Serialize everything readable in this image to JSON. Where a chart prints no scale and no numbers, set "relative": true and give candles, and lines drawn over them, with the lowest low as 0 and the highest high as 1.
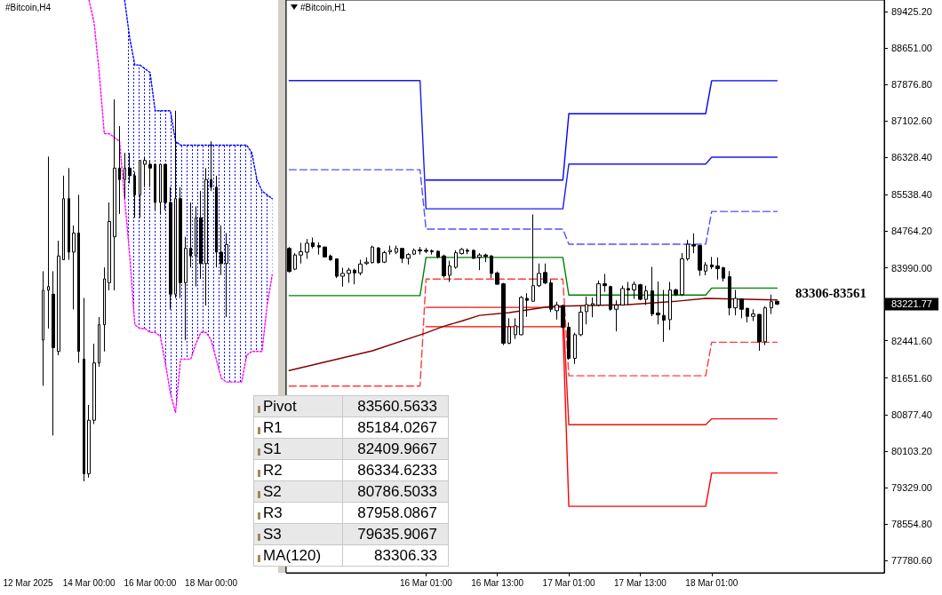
{
  "chart_data": [
    {
      "type": "candlestick",
      "title": "#Bitcoin,H4",
      "relative": true,
      "x": [
        "2025-03-12T12:00",
        "2025-03-12T16:00",
        "2025-03-12T20:00",
        "2025-03-13T00:00",
        "2025-03-13T04:00",
        "2025-03-13T08:00",
        "2025-03-13T12:00",
        "2025-03-13T16:00",
        "2025-03-13T20:00",
        "2025-03-14T00:00",
        "2025-03-14T04:00",
        "2025-03-14T08:00",
        "2025-03-14T12:00",
        "2025-03-14T16:00",
        "2025-03-14T20:00",
        "2025-03-15T00:00",
        "2025-03-15T04:00",
        "2025-03-15T08:00",
        "2025-03-15T12:00",
        "2025-03-15T16:00",
        "2025-03-15T20:00",
        "2025-03-16T00:00",
        "2025-03-16T04:00",
        "2025-03-16T08:00",
        "2025-03-16T12:00",
        "2025-03-16T16:00",
        "2025-03-16T20:00",
        "2025-03-17T00:00",
        "2025-03-17T04:00",
        "2025-03-17T08:00",
        "2025-03-17T12:00",
        "2025-03-17T16:00",
        "2025-03-17T20:00",
        "2025-03-18T00:00",
        "2025-03-18T04:00",
        "2025-03-18T08:00",
        "2025-03-18T12:00"
      ],
      "ohlc": [
        [
          0.37,
          0.55,
          0.25,
          0.5
        ],
        [
          0.5,
          0.85,
          0.4,
          0.51
        ],
        [
          0.49,
          0.55,
          0.12,
          0.35
        ],
        [
          0.34,
          0.63,
          0.33,
          0.59
        ],
        [
          0.58,
          0.8,
          0.58,
          0.74
        ],
        [
          0.74,
          0.82,
          0.58,
          0.6
        ],
        [
          0.6,
          0.67,
          0.45,
          0.65
        ],
        [
          0.65,
          0.75,
          0.31,
          0.34
        ],
        [
          0.32,
          0.48,
          0,
          0.02
        ],
        [
          0.02,
          0.2,
          0.01,
          0.16
        ],
        [
          0.16,
          0.36,
          0.15,
          0.31
        ],
        [
          0.31,
          0.43,
          0.3,
          0.41
        ],
        [
          0.41,
          0.56,
          0.34,
          0.53
        ],
        [
          0.52,
          0.73,
          0.5,
          0.68
        ],
        [
          0.64,
          1,
          0.5,
          0.82
        ],
        [
          0.82,
          0.93,
          0.7,
          0.79
        ],
        [
          0.79,
          0.86,
          0.74,
          0.82
        ],
        [
          0.82,
          0.86,
          0.78,
          0.8
        ],
        [
          0.8,
          0.81,
          0.69,
          0.75
        ],
        [
          0.75,
          0.84,
          0.69,
          0.84
        ],
        [
          0.83,
          0.85,
          0.77,
          0.84
        ],
        [
          0.83,
          0.84,
          0.77,
          0.82
        ],
        [
          0.83,
          0.83,
          0.71,
          0.73
        ],
        [
          0.73,
          0.83,
          0.7,
          0.83
        ],
        [
          0.83,
          0.83,
          0.71,
          0.73
        ],
        [
          0.73,
          0.77,
          0.45,
          0.49
        ],
        [
          0.49,
          0.97,
          0.48,
          0.74
        ],
        [
          0.74,
          0.77,
          0.48,
          0.52
        ],
        [
          0.52,
          0.64,
          0.37,
          0.61
        ],
        [
          0.61,
          0.73,
          0.56,
          0.59
        ],
        [
          0.59,
          0.72,
          0.51,
          0.69
        ],
        [
          0.69,
          0.76,
          0.53,
          0.57
        ],
        [
          0.57,
          0.82,
          0.46,
          0.79
        ],
        [
          0.79,
          0.89,
          0.76,
          0.77
        ],
        [
          0.77,
          0.8,
          0.56,
          0.6
        ],
        [
          0.6,
          0.67,
          0.54,
          0.57
        ],
        [
          0.57,
          0.65,
          0.43,
          0.62
        ]
      ],
      "xlim": [
        "2025-03-11T02:00",
        "2025-03-20T04:00"
      ],
      "xticks": [
        {
          "value": "2025-03-12T00:00",
          "label": "12 Mar 2025"
        },
        {
          "value": "2025-03-14T00:00",
          "label": "14 Mar 00:00"
        },
        {
          "value": "2025-03-16T00:00",
          "label": "16 Mar 00:00"
        },
        {
          "value": "2025-03-18T00:00",
          "label": "18 Mar 00:00"
        }
      ],
      "series": [
        {
          "type": "line",
          "color": "#0000ff",
          "line_style": "dotted",
          "x": [
            "2025-03-15T04:00",
            "2025-03-15T08:00",
            "2025-03-15T12:00",
            "2025-03-15T16:00",
            "2025-03-15T20:00",
            "2025-03-16T00:00",
            "2025-03-16T04:00",
            "2025-03-16T08:00",
            "2025-03-16T12:00",
            "2025-03-16T16:00",
            "2025-03-16T20:00",
            "2025-03-17T00:00",
            "2025-03-17T04:00",
            "2025-03-17T08:00",
            "2025-03-17T12:00",
            "2025-03-17T16:00",
            "2025-03-17T20:00",
            "2025-03-18T00:00",
            "2025-03-18T04:00",
            "2025-03-18T08:00",
            "2025-03-18T12:00",
            "2025-03-18T16:00",
            "2025-03-18T20:00",
            "2025-03-19T00:00",
            "2025-03-19T04:00",
            "2025-03-19T08:00",
            "2025-03-19T12:00",
            "2025-03-19T16:00",
            "2025-03-19T20:00",
            "2025-03-20T00:00"
          ],
          "values": [
            1.26,
            1.16,
            1.09,
            1.09,
            1.08,
            1.07,
            0.97,
            0.97,
            0.97,
            0.97,
            0.89,
            0.88,
            0.88,
            0.88,
            0.88,
            0.88,
            0.88,
            0.88,
            0.88,
            0.88,
            0.88,
            0.88,
            0.88,
            0.88,
            0.88,
            0.86,
            0.79,
            0.76,
            0.75,
            0.74
          ],
          "lower": [
            0.74,
            0.59,
            0.41,
            0.4,
            0.4,
            0.39,
            0.39,
            0.38,
            0.31,
            0.23,
            0.18,
            0.32,
            0.32,
            0.32,
            0.36,
            0.39,
            0.39,
            0.37,
            0.32,
            0.27,
            0.26,
            0.26,
            0.26,
            0.26,
            0.33,
            0.34,
            0.34,
            0.34,
            0.46,
            0.54
          ],
          "upper": [
            1.26,
            1.16,
            1.09,
            1.09,
            1.08,
            1.07,
            0.97,
            0.97,
            0.97,
            0.97,
            0.89,
            0.88,
            0.88,
            0.88,
            0.88,
            0.88,
            0.88,
            0.88,
            0.88,
            0.88,
            0.88,
            0.88,
            0.88,
            0.88,
            0.88,
            0.86,
            0.79,
            0.76,
            0.75,
            0.74
          ]
        },
        {
          "type": "line",
          "color": "#ff00ff",
          "line_style": "dotted",
          "x": [
            "2025-03-14T00:00",
            "2025-03-14T04:00",
            "2025-03-14T08:00",
            "2025-03-14T12:00",
            "2025-03-14T16:00",
            "2025-03-14T20:00",
            "2025-03-15T00:00",
            "2025-03-15T04:00",
            "2025-03-15T08:00",
            "2025-03-15T12:00",
            "2025-03-15T16:00",
            "2025-03-15T20:00",
            "2025-03-16T00:00",
            "2025-03-16T04:00",
            "2025-03-16T08:00",
            "2025-03-16T12:00",
            "2025-03-16T16:00",
            "2025-03-16T20:00",
            "2025-03-17T00:00",
            "2025-03-17T04:00",
            "2025-03-17T08:00",
            "2025-03-17T12:00",
            "2025-03-17T16:00",
            "2025-03-17T20:00",
            "2025-03-18T00:00",
            "2025-03-18T04:00",
            "2025-03-18T08:00",
            "2025-03-18T12:00",
            "2025-03-18T16:00",
            "2025-03-18T20:00",
            "2025-03-19T00:00",
            "2025-03-19T04:00",
            "2025-03-19T08:00",
            "2025-03-19T12:00",
            "2025-03-19T16:00",
            "2025-03-19T20:00",
            "2025-03-20T00:00"
          ],
          "values": [
            1.26,
            1.2,
            1.07,
            0.91,
            0.91,
            0.9,
            0.89,
            0.74,
            0.59,
            0.41,
            0.4,
            0.4,
            0.39,
            0.39,
            0.38,
            0.31,
            0.23,
            0.18,
            0.32,
            0.32,
            0.32,
            0.36,
            0.39,
            0.39,
            0.37,
            0.32,
            0.27,
            0.26,
            0.26,
            0.26,
            0.26,
            0.33,
            0.34,
            0.34,
            0.34,
            0.46,
            0.54
          ]
        }
      ]
    },
    {
      "type": "candlestick",
      "title": "#Bitcoin,H1",
      "x": [
        "2025-03-15T02:00",
        "2025-03-15T03:00",
        "2025-03-15T04:00",
        "2025-03-15T05:00",
        "2025-03-15T06:00",
        "2025-03-15T07:00",
        "2025-03-15T08:00",
        "2025-03-15T09:00",
        "2025-03-15T10:00",
        "2025-03-15T11:00",
        "2025-03-15T12:00",
        "2025-03-15T13:00",
        "2025-03-15T14:00",
        "2025-03-15T15:00",
        "2025-03-15T16:00",
        "2025-03-15T17:00",
        "2025-03-15T18:00",
        "2025-03-15T19:00",
        "2025-03-15T20:00",
        "2025-03-15T21:00",
        "2025-03-15T22:00",
        "2025-03-15T23:00",
        "2025-03-16T00:00",
        "2025-03-16T01:00",
        "2025-03-16T02:00",
        "2025-03-16T03:00",
        "2025-03-16T04:00",
        "2025-03-16T05:00",
        "2025-03-16T06:00",
        "2025-03-16T07:00",
        "2025-03-16T08:00",
        "2025-03-16T09:00",
        "2025-03-16T10:00",
        "2025-03-16T11:00",
        "2025-03-16T12:00",
        "2025-03-16T13:00",
        "2025-03-16T14:00",
        "2025-03-16T15:00",
        "2025-03-16T16:00",
        "2025-03-16T17:00",
        "2025-03-16T18:00",
        "2025-03-16T19:00",
        "2025-03-16T20:00",
        "2025-03-16T21:00",
        "2025-03-16T22:00",
        "2025-03-16T23:00",
        "2025-03-17T00:00",
        "2025-03-17T01:00",
        "2025-03-17T02:00",
        "2025-03-17T03:00",
        "2025-03-17T04:00",
        "2025-03-17T05:00",
        "2025-03-17T06:00",
        "2025-03-17T07:00",
        "2025-03-17T08:00",
        "2025-03-17T09:00",
        "2025-03-17T10:00",
        "2025-03-17T11:00",
        "2025-03-17T12:00",
        "2025-03-17T13:00",
        "2025-03-17T14:00",
        "2025-03-17T15:00",
        "2025-03-17T16:00",
        "2025-03-17T17:00",
        "2025-03-17T18:00",
        "2025-03-17T19:00",
        "2025-03-17T20:00",
        "2025-03-17T21:00",
        "2025-03-17T22:00",
        "2025-03-17T23:00",
        "2025-03-18T00:00",
        "2025-03-18T01:00",
        "2025-03-18T02:00",
        "2025-03-18T03:00",
        "2025-03-18T04:00",
        "2025-03-18T05:00",
        "2025-03-18T06:00",
        "2025-03-18T07:00",
        "2025-03-18T08:00",
        "2025-03-18T09:00",
        "2025-03-18T10:00",
        "2025-03-18T11:00",
        "2025-03-18T12:00"
      ],
      "ohlc": [
        [
          84400,
          84430,
          83890,
          83910
        ],
        [
          83960,
          84300,
          83940,
          84260
        ],
        [
          84260,
          84520,
          84080,
          84330
        ],
        [
          84320,
          84600,
          84180,
          84510
        ],
        [
          84520,
          84630,
          84400,
          84440
        ],
        [
          84460,
          84530,
          84270,
          84430
        ],
        [
          84430,
          84440,
          84210,
          84220
        ],
        [
          84240,
          84270,
          84140,
          84160
        ],
        [
          84180,
          84190,
          83770,
          83810
        ],
        [
          83810,
          83990,
          83590,
          83870
        ],
        [
          83870,
          83990,
          83670,
          83940
        ],
        [
          83940,
          83970,
          83640,
          83880
        ],
        [
          83880,
          84160,
          83830,
          84070
        ],
        [
          84080,
          84210,
          84050,
          84110
        ],
        [
          84100,
          84460,
          84080,
          84430
        ],
        [
          84410,
          84430,
          84080,
          84100
        ],
        [
          84110,
          84350,
          84090,
          84310
        ],
        [
          84330,
          84460,
          84270,
          84360
        ],
        [
          84320,
          84460,
          84280,
          84400
        ],
        [
          84400,
          84410,
          84090,
          84190
        ],
        [
          84190,
          84300,
          84060,
          84270
        ],
        [
          84280,
          84400,
          84260,
          84360
        ],
        [
          84370,
          84430,
          84270,
          84350
        ],
        [
          84360,
          84410,
          84300,
          84340
        ],
        [
          84350,
          84380,
          84270,
          84330
        ],
        [
          84340,
          84360,
          84190,
          84220
        ],
        [
          84240,
          84270,
          83780,
          83820
        ],
        [
          83830,
          84140,
          83690,
          84030
        ],
        [
          84000,
          84360,
          83970,
          84310
        ],
        [
          84290,
          84410,
          84270,
          84380
        ],
        [
          84360,
          84400,
          84280,
          84340
        ],
        [
          84360,
          84380,
          84180,
          84190
        ],
        [
          84210,
          84300,
          83940,
          84260
        ],
        [
          84260,
          84290,
          84110,
          84230
        ],
        [
          84240,
          84260,
          83770,
          83870
        ],
        [
          83880,
          83910,
          83630,
          83640
        ],
        [
          83650,
          83670,
          82350,
          82390
        ],
        [
          82390,
          82920,
          82370,
          82740
        ],
        [
          82570,
          82920,
          82480,
          82760
        ],
        [
          82570,
          83390,
          82560,
          83360
        ],
        [
          83340,
          83450,
          82950,
          83300
        ],
        [
          83280,
          85120,
          83270,
          83610
        ],
        [
          83610,
          84080,
          83580,
          83870
        ],
        [
          83890,
          84080,
          83640,
          83670
        ],
        [
          83670,
          83740,
          83050,
          83110
        ],
        [
          83080,
          83270,
          82890,
          83200
        ],
        [
          83190,
          83200,
          82700,
          82730
        ],
        [
          82730,
          82830,
          82040,
          82070
        ],
        [
          82070,
          82610,
          81950,
          82570
        ],
        [
          82570,
          83170,
          82540,
          83050
        ],
        [
          83060,
          83380,
          82790,
          83210
        ],
        [
          83200,
          83360,
          82940,
          83230
        ],
        [
          83200,
          83720,
          83170,
          83650
        ],
        [
          83650,
          83860,
          83480,
          83610
        ],
        [
          83590,
          83610,
          83080,
          83110
        ],
        [
          83110,
          83300,
          82640,
          83200
        ],
        [
          83200,
          83610,
          83190,
          83550
        ],
        [
          83550,
          83690,
          83200,
          83520
        ],
        [
          83520,
          83700,
          83330,
          83640
        ],
        [
          83630,
          83650,
          83300,
          83320
        ],
        [
          83320,
          83610,
          83200,
          83500
        ],
        [
          83500,
          84010,
          82960,
          83010
        ],
        [
          83030,
          83700,
          82790,
          82990
        ],
        [
          82980,
          83520,
          82420,
          82880
        ],
        [
          82890,
          83690,
          82670,
          83520
        ],
        [
          83520,
          83550,
          83390,
          83420
        ],
        [
          83420,
          84300,
          83390,
          84180
        ],
        [
          84180,
          84580,
          84140,
          84490
        ],
        [
          84480,
          84720,
          84300,
          84450
        ],
        [
          84460,
          84470,
          83820,
          83940
        ],
        [
          83920,
          84110,
          83830,
          84050
        ],
        [
          84050,
          84220,
          83960,
          84010
        ],
        [
          84030,
          84210,
          83740,
          83970
        ],
        [
          83990,
          84010,
          83700,
          83770
        ],
        [
          83800,
          83920,
          82980,
          83140
        ],
        [
          83140,
          83520,
          82980,
          83340
        ],
        [
          83330,
          83340,
          82920,
          83110
        ],
        [
          83130,
          83140,
          82830,
          82960
        ],
        [
          82960,
          83110,
          82860,
          83010
        ],
        [
          83000,
          83010,
          82230,
          82420
        ],
        [
          82420,
          83170,
          82350,
          83140
        ],
        [
          83140,
          83420,
          83010,
          83270
        ],
        [
          83280,
          83280,
          83200,
          83220
        ]
      ],
      "xlim": [
        "2025-03-15T01:30",
        "2025-03-19T06:00"
      ],
      "ylim": [
        77520,
        89670
      ],
      "xticks": [
        {
          "value": "2025-03-16T01:00",
          "label": "16 Mar 01:00"
        },
        {
          "value": "2025-03-16T13:00",
          "label": "16 Mar 13:00"
        },
        {
          "value": "2025-03-17T01:00",
          "label": "17 Mar 01:00"
        },
        {
          "value": "2025-03-17T13:00",
          "label": "17 Mar 13:00"
        },
        {
          "value": "2025-03-18T01:00",
          "label": "18 Mar 01:00"
        }
      ],
      "yticks": [
        {
          "value": 89425.2,
          "label": "89425.20"
        },
        {
          "value": 88651,
          "label": "88651.00"
        },
        {
          "value": 87876.8,
          "label": "87876.80"
        },
        {
          "value": 87102.6,
          "label": "87102.60"
        },
        {
          "value": 86328.4,
          "label": "86328.40"
        },
        {
          "value": 85538.4,
          "label": "85538.40"
        },
        {
          "value": 84764.2,
          "label": "84764.20"
        },
        {
          "value": 83990,
          "label": "83990.00"
        },
        {
          "value": 82441.6,
          "label": "82441.60"
        },
        {
          "value": 81651.6,
          "label": "81651.60"
        },
        {
          "value": 80877.4,
          "label": "80877.40"
        },
        {
          "value": 80103.2,
          "label": "80103.20"
        },
        {
          "value": 79329,
          "label": "79329.00"
        },
        {
          "value": 78554.8,
          "label": "78554.80"
        },
        {
          "value": 77780.6,
          "label": "77780.60"
        }
      ],
      "series": [
        {
          "type": "line",
          "color": "#0000ff",
          "x": [
            "2025-03-16T01:00",
            "2025-03-17T00:00",
            "2025-03-17T01:00",
            "2025-03-18T00:00",
            "2025-03-18T01:00",
            "2025-03-18T12:00"
          ],
          "values": [
            85850,
            85850,
            87260,
            87260,
            87958.0867,
            87958.0867
          ]
        },
        {
          "type": "line",
          "color": "#1a1aee",
          "x": [
            "2025-03-15T02:00",
            "2025-03-16T00:00",
            "2025-03-16T01:00",
            "2025-03-17T00:00",
            "2025-03-17T01:00",
            "2025-03-18T00:00",
            "2025-03-18T01:00",
            "2025-03-18T12:00"
          ],
          "values": [
            87960,
            87960,
            85240,
            85240,
            86190,
            86190,
            86334.6233,
            86334.6233
          ]
        },
        {
          "type": "line",
          "color": "#5050ff",
          "line_style": "dashed",
          "x": [
            "2025-03-15T02:00",
            "2025-03-16T00:00",
            "2025-03-16T01:00",
            "2025-03-17T00:00",
            "2025-03-17T01:00",
            "2025-03-18T00:00",
            "2025-03-18T01:00",
            "2025-03-18T12:00"
          ],
          "values": [
            86070,
            86070,
            84810,
            84810,
            84490,
            84490,
            85184.0267,
            85184.0267
          ]
        },
        {
          "type": "line",
          "color": "#008000",
          "x": [
            "2025-03-15T02:00",
            "2025-03-16T00:00",
            "2025-03-16T01:00",
            "2025-03-17T00:00",
            "2025-03-17T01:00",
            "2025-03-18T00:00",
            "2025-03-18T01:00",
            "2025-03-18T12:00"
          ],
          "values": [
            83400,
            83400,
            84210,
            84210,
            83410,
            83410,
            83560.5633,
            83560.5633
          ]
        },
        {
          "type": "line",
          "color": "#ff3c3c",
          "line_style": "dashed",
          "x": [
            "2025-03-15T02:00",
            "2025-03-16T00:00",
            "2025-03-16T01:00",
            "2025-03-17T00:00",
            "2025-03-17T01:00",
            "2025-03-18T00:00",
            "2025-03-18T01:00",
            "2025-03-18T12:00"
          ],
          "values": [
            81480,
            81480,
            83750,
            83750,
            81700,
            81700,
            82409.9667,
            82409.9667
          ]
        },
        {
          "type": "line",
          "color": "#f01010",
          "x": [
            "2025-03-16T01:00",
            "2025-03-17T00:00",
            "2025-03-17T01:00",
            "2025-03-18T00:00",
            "2025-03-18T01:00",
            "2025-03-18T12:00"
          ],
          "values": [
            83150,
            83150,
            80660,
            80660,
            80786.5033,
            80786.5033
          ]
        },
        {
          "type": "line",
          "color": "#ff0000",
          "x": [
            "2025-03-16T01:00",
            "2025-03-17T00:00",
            "2025-03-17T01:00",
            "2025-03-18T00:00",
            "2025-03-18T01:00",
            "2025-03-18T12:00"
          ],
          "values": [
            82740,
            82740,
            78930,
            78930,
            79635.9067,
            79635.9067
          ]
        },
        {
          "type": "line",
          "color": "#800000",
          "x": [
            "2025-03-15T02:00",
            "2025-03-15T16:00",
            "2025-03-16T01:00",
            "2025-03-16T04:00",
            "2025-03-16T07:00",
            "2025-03-16T10:00",
            "2025-03-16T15:00",
            "2025-03-16T22:00",
            "2025-03-17T11:00",
            "2025-03-17T19:00",
            "2025-03-18T00:00",
            "2025-03-18T12:00"
          ],
          "values": [
            81810,
            82230,
            82610,
            82750,
            82860,
            82980,
            83040,
            83170,
            83210,
            83280,
            83340,
            83306.33
          ]
        }
      ],
      "annotations": [
        "83306-83561",
        "83221.77",
        "Pivot",
        "83560.5633",
        "R1",
        "85184.0267",
        "S1",
        "82409.9667",
        "R2",
        "86334.6233",
        "S2",
        "80786.5033",
        "R3",
        "87958.0867",
        "S3",
        "79635.9067",
        "MA(120)",
        "83306.33"
      ]
    }
  ]
}
